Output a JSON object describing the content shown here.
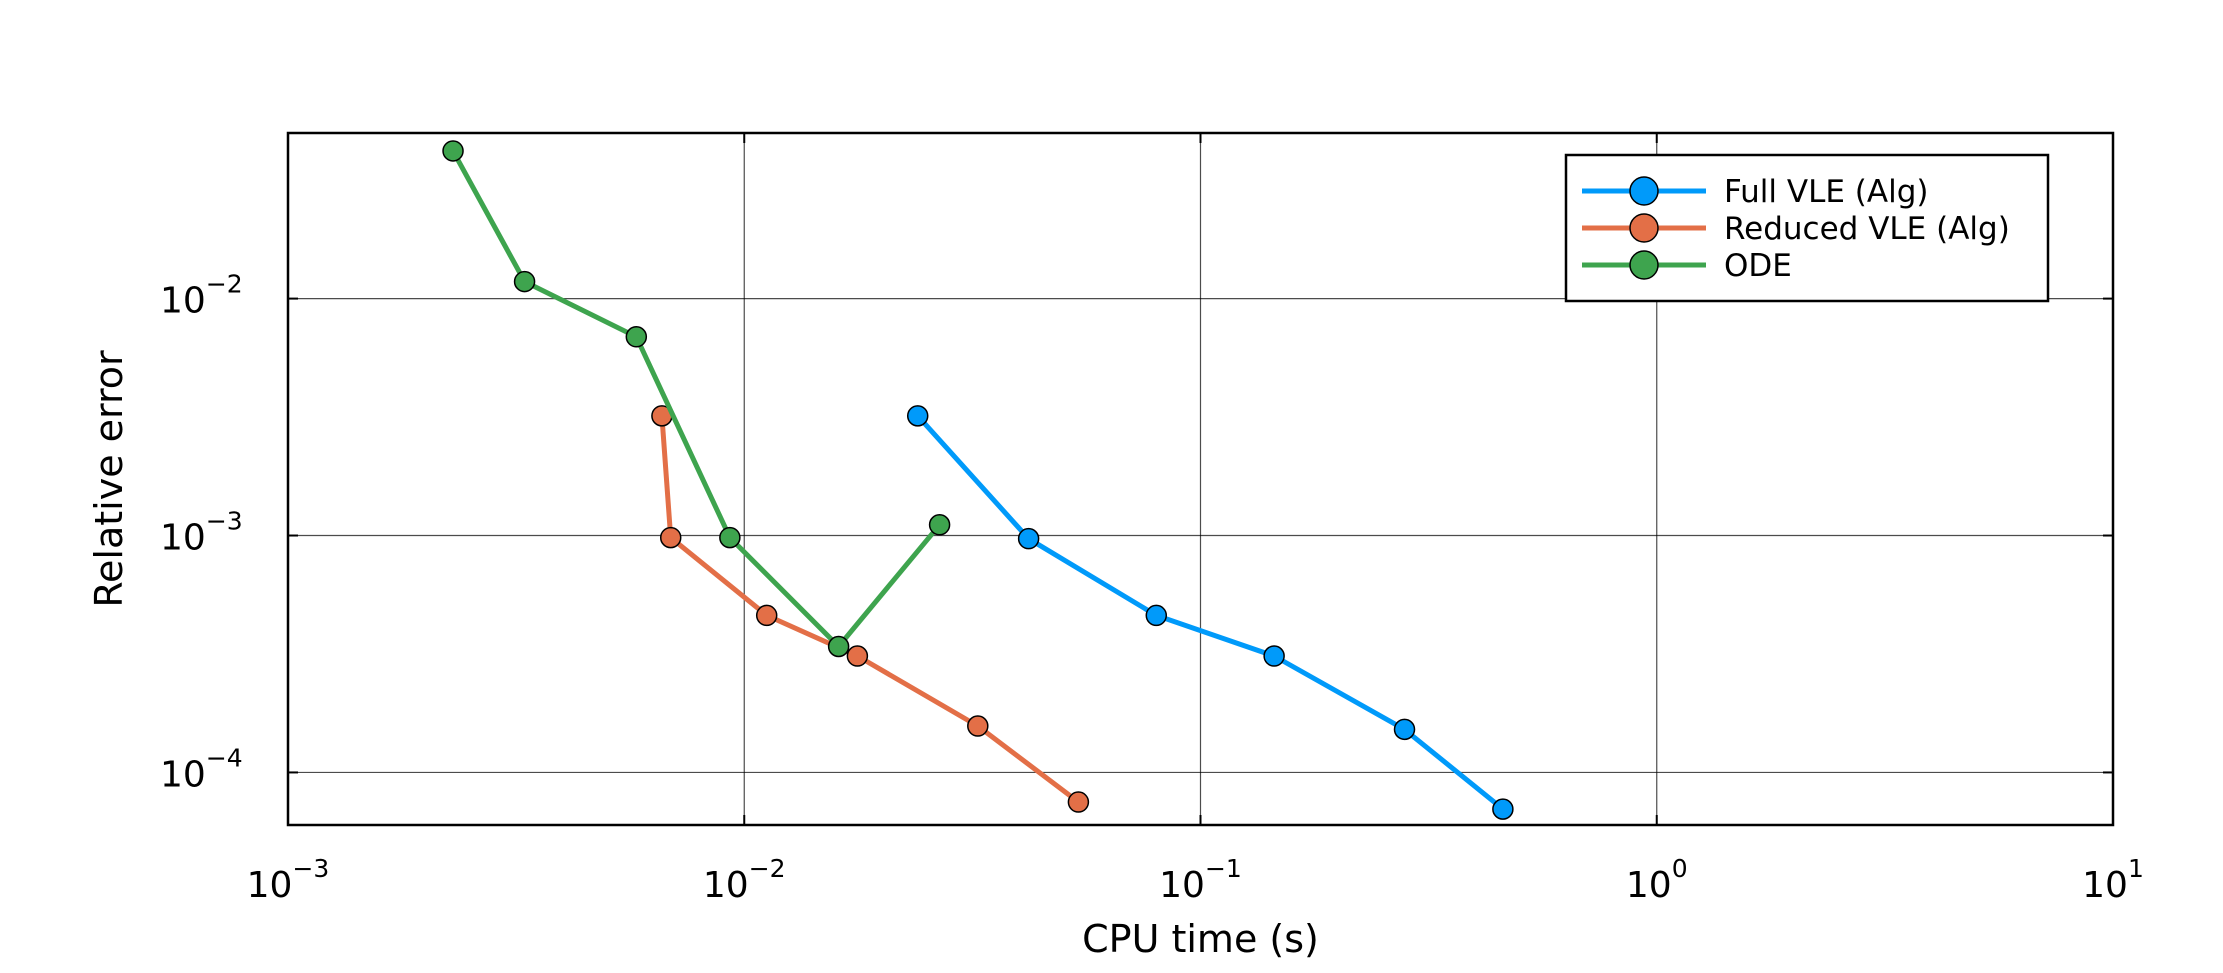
{
  "chart_data": {
    "type": "line",
    "title": "",
    "xlabel": "CPU time (s)",
    "ylabel": "Relative error",
    "x_scale": "log",
    "y_scale": "log",
    "xlim": [
      0.001,
      10
    ],
    "ylim": [
      6e-05,
      0.05
    ],
    "x_ticks": [
      {
        "value": 0.001,
        "base": "10",
        "exp": "−3"
      },
      {
        "value": 0.01,
        "base": "10",
        "exp": "−2"
      },
      {
        "value": 0.1,
        "base": "10",
        "exp": "−1"
      },
      {
        "value": 1,
        "base": "10",
        "exp": "0"
      },
      {
        "value": 10,
        "base": "10",
        "exp": "1"
      }
    ],
    "y_ticks": [
      {
        "value": 0.0001,
        "base": "10",
        "exp": "−4"
      },
      {
        "value": 0.001,
        "base": "10",
        "exp": "−3"
      },
      {
        "value": 0.01,
        "base": "10",
        "exp": "−2"
      }
    ],
    "grid": true,
    "legend_position": "top-right",
    "series": [
      {
        "name": "Full VLE (Alg)",
        "color": "#009AFA",
        "points": [
          [
            0.024,
            0.0032
          ],
          [
            0.042,
            0.00097
          ],
          [
            0.08,
            0.00046
          ],
          [
            0.145,
            0.00031
          ],
          [
            0.28,
            0.000152
          ],
          [
            0.46,
            7e-05
          ]
        ]
      },
      {
        "name": "Reduced VLE (Alg)",
        "color": "#E36F47",
        "points": [
          [
            0.0066,
            0.0032
          ],
          [
            0.0069,
            0.00098
          ],
          [
            0.0112,
            0.00046
          ],
          [
            0.0177,
            0.00031
          ],
          [
            0.0325,
            0.000157
          ],
          [
            0.054,
            7.5e-05
          ]
        ]
      },
      {
        "name": "ODE",
        "color": "#3EA44E",
        "points": [
          [
            0.0023,
            0.042
          ],
          [
            0.0033,
            0.0118
          ],
          [
            0.0058,
            0.0069
          ],
          [
            0.0093,
            0.00098
          ],
          [
            0.0161,
            0.00034
          ],
          [
            0.0268,
            0.00111
          ]
        ]
      }
    ]
  }
}
